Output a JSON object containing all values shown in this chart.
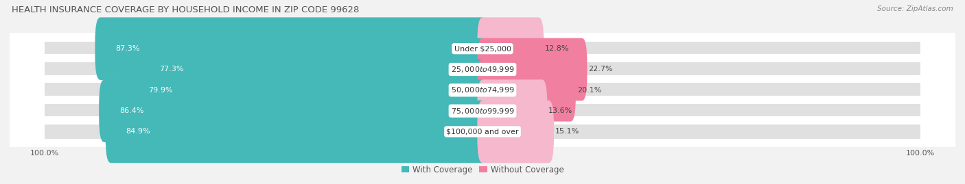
{
  "title": "HEALTH INSURANCE COVERAGE BY HOUSEHOLD INCOME IN ZIP CODE 99628",
  "source": "Source: ZipAtlas.com",
  "categories": [
    "Under $25,000",
    "$25,000 to $49,999",
    "$50,000 to $74,999",
    "$75,000 to $99,999",
    "$100,000 and over"
  ],
  "with_coverage": [
    87.3,
    77.3,
    79.9,
    86.4,
    84.9
  ],
  "without_coverage": [
    12.8,
    22.7,
    20.1,
    13.6,
    15.1
  ],
  "color_with": "#45b8b8",
  "color_without": "#f07fa0",
  "color_without_light": "#f5b8cc",
  "bg_color": "#f2f2f2",
  "row_bg_color": "#e0e0e0",
  "title_fontsize": 9.5,
  "label_fontsize": 8,
  "pct_fontsize": 8,
  "tick_fontsize": 8,
  "legend_fontsize": 8.5
}
